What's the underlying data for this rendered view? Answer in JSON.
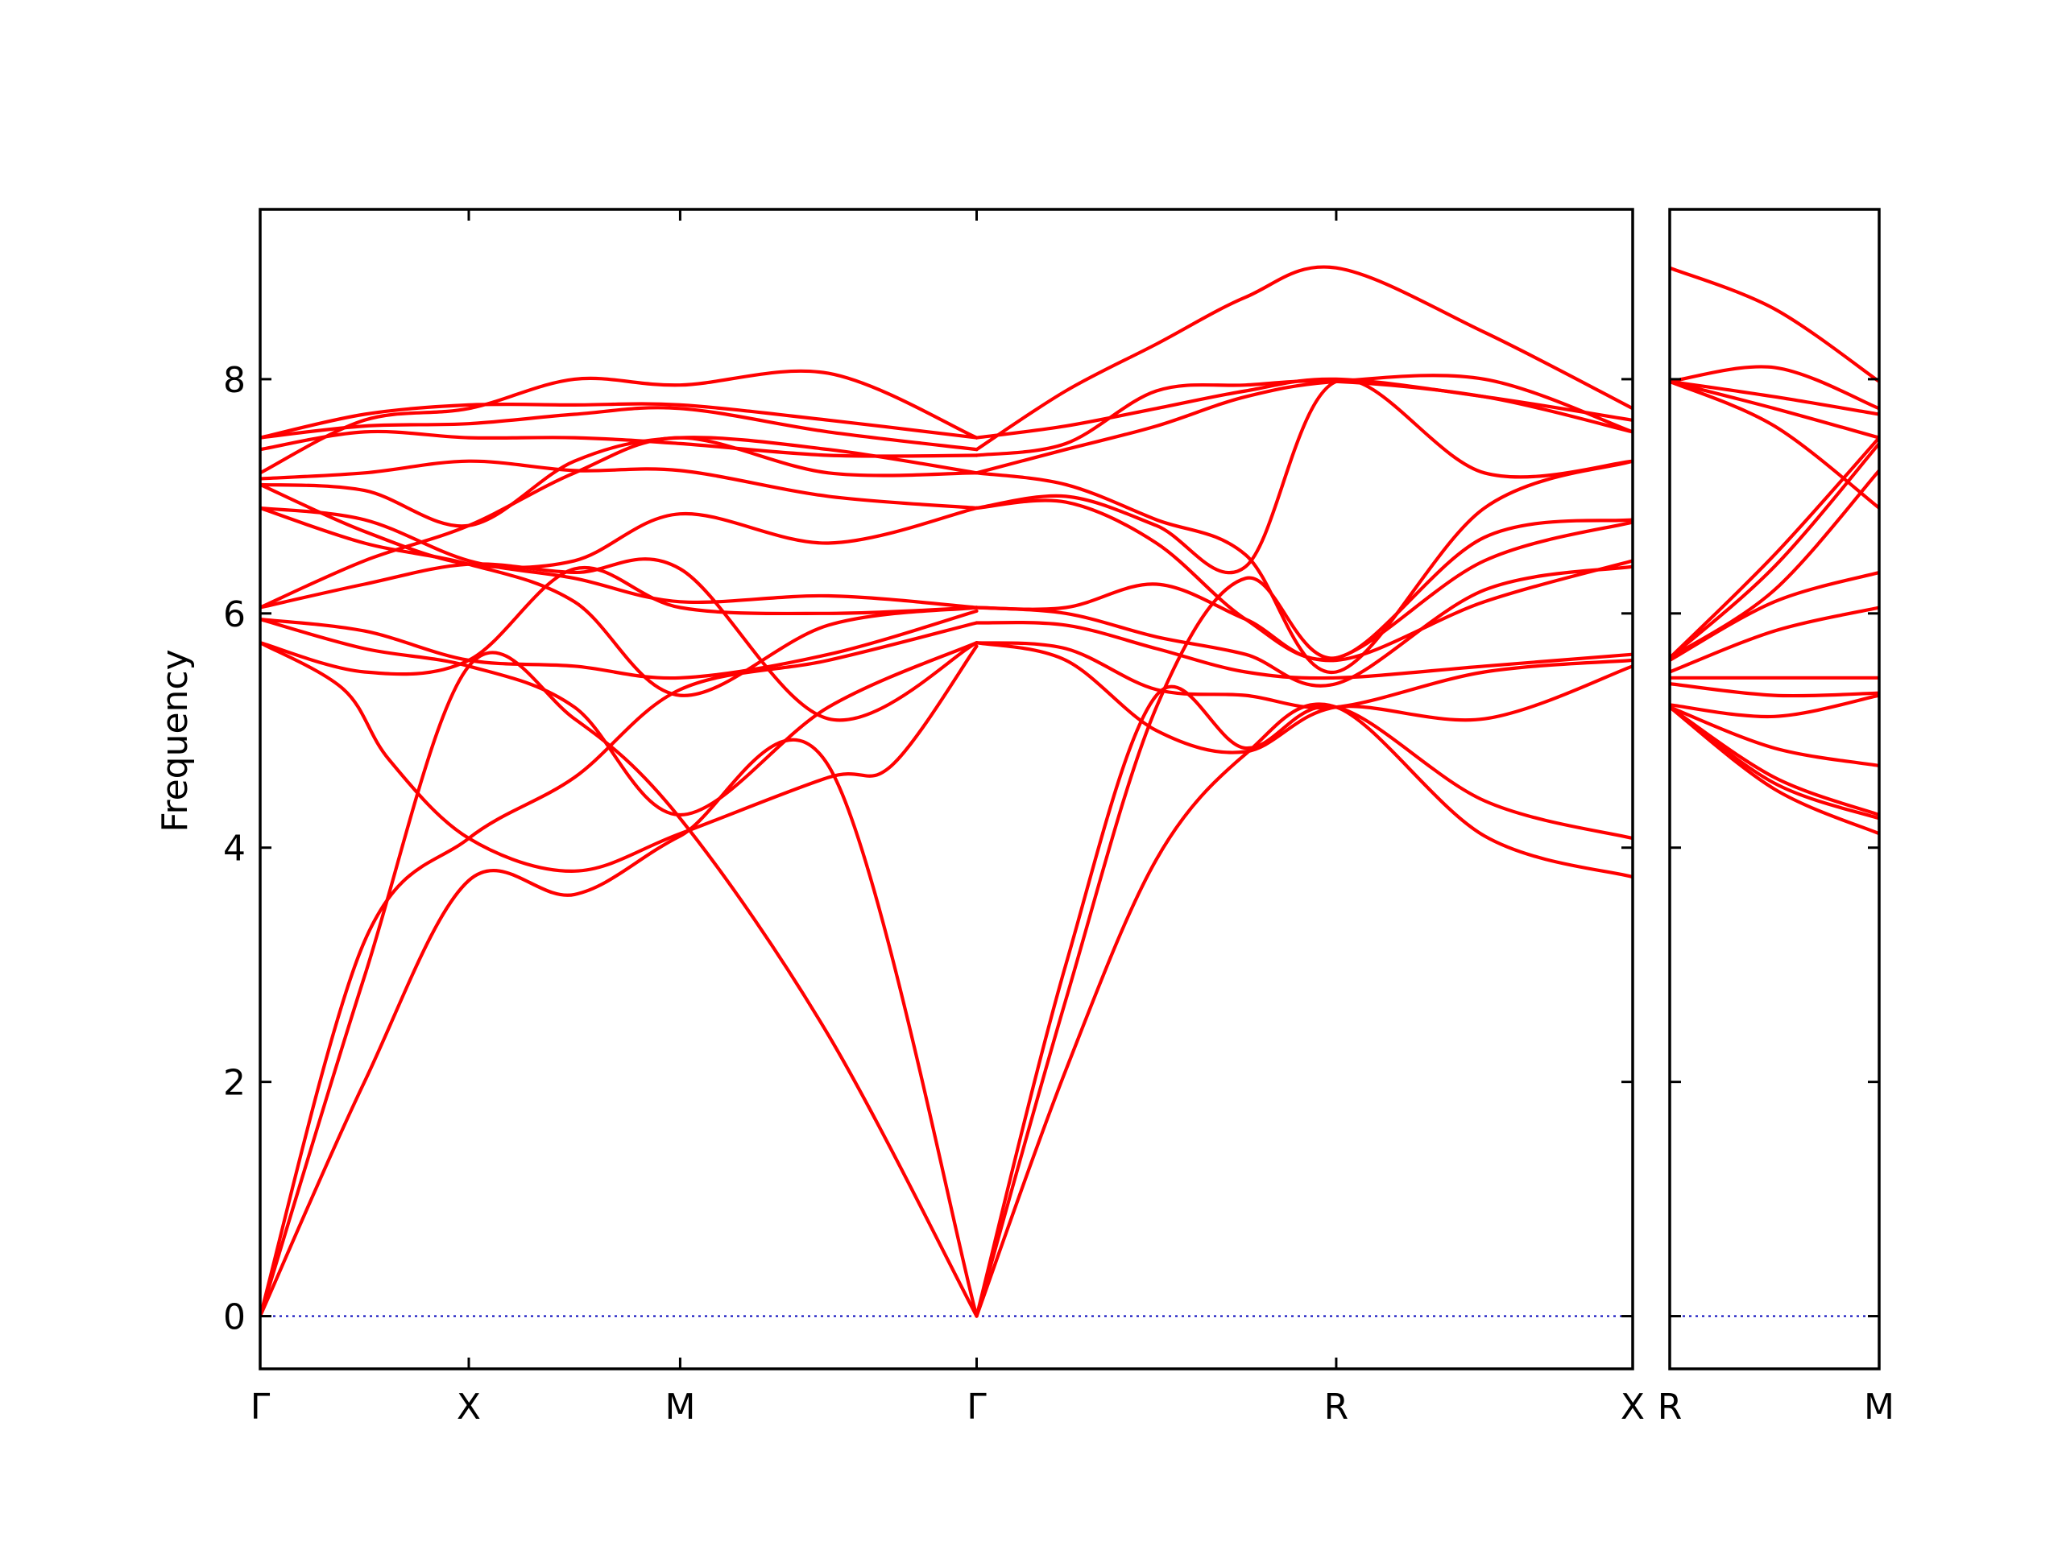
{
  "chart_data": {
    "type": "line",
    "title": "",
    "ylabel": "Frequency",
    "xlabel": "",
    "ylim": [
      -0.45,
      9.45
    ],
    "yticks": [
      0,
      2,
      4,
      6,
      8
    ],
    "grid": false,
    "colors": {
      "band": "#ff0000",
      "zero_line": "#0000bb",
      "frame": "#000000"
    },
    "panels": [
      {
        "x_range": [
          0,
          1.0
        ],
        "labels": [
          "Γ",
          "X",
          "M",
          "Γ",
          "R",
          "X"
        ],
        "label_positions": [
          0,
          0.152,
          0.306,
          0.522,
          0.784,
          1.0
        ],
        "series": [
          {
            "name": "",
            "x": [
              0,
              0.076,
              0.152,
              0.229,
              0.306,
              0.414,
              0.522
            ],
            "y": [
              0,
              2.0,
              3.72,
              3.6,
              4.1,
              4.7,
              0
            ]
          },
          {
            "name": "",
            "x": [
              0,
              0.076,
              0.152,
              0.229,
              0.306,
              0.414,
              0.522
            ],
            "y": [
              0,
              2.9,
              5.55,
              5.1,
              4.25,
              2.4,
              0
            ]
          },
          {
            "name": "",
            "x": [
              0,
              0.061,
              0.094,
              0.152,
              0.229,
              0.306,
              0.414,
              0.46,
              0.522
            ],
            "y": [
              5.75,
              5.35,
              4.75,
              4.08,
              3.8,
              4.12,
              4.6,
              4.7,
              5.72
            ]
          },
          {
            "name": "",
            "x": [
              0,
              0.076,
              0.152,
              0.229,
              0.306,
              0.414,
              0.522
            ],
            "y": [
              5.95,
              5.7,
              5.55,
              5.2,
              4.28,
              5.2,
              5.75
            ]
          },
          {
            "name": "",
            "x": [
              0,
              0.076,
              0.152,
              0.229,
              0.306,
              0.414,
              0.522
            ],
            "y": [
              0,
              3.2,
              4.08,
              4.6,
              5.35,
              5.6,
              5.92
            ]
          },
          {
            "name": "",
            "x": [
              0,
              0.076,
              0.152,
              0.229,
              0.306,
              0.414,
              0.522
            ],
            "y": [
              5.95,
              5.85,
              5.6,
              5.55,
              5.45,
              5.65,
              6.02
            ]
          },
          {
            "name": "",
            "x": [
              0,
              0.076,
              0.152,
              0.229,
              0.306,
              0.414,
              0.522
            ],
            "y": [
              6.05,
              6.25,
              6.42,
              6.35,
              6.38,
              5.1,
              5.75
            ]
          },
          {
            "name": "",
            "x": [
              0,
              0.076,
              0.152,
              0.229,
              0.306,
              0.414,
              0.522
            ],
            "y": [
              6.9,
              6.6,
              6.42,
              6.1,
              5.3,
              5.9,
              6.05
            ]
          },
          {
            "name": "",
            "x": [
              0,
              0.076,
              0.152,
              0.229,
              0.306,
              0.414,
              0.522
            ],
            "y": [
              5.75,
              5.5,
              5.6,
              6.38,
              6.05,
              6.0,
              6.05
            ]
          },
          {
            "name": "",
            "x": [
              0,
              0.076,
              0.152,
              0.229,
              0.306,
              0.414,
              0.522
            ],
            "y": [
              6.05,
              6.45,
              6.75,
              7.2,
              7.5,
              7.2,
              7.2
            ]
          },
          {
            "name": "",
            "x": [
              0,
              0.076,
              0.152,
              0.229,
              0.306,
              0.414,
              0.522
            ],
            "y": [
              7.1,
              6.7,
              6.42,
              6.45,
              6.85,
              6.6,
              6.9
            ]
          },
          {
            "name": "",
            "x": [
              0,
              0.076,
              0.152,
              0.229,
              0.306,
              0.414,
              0.522
            ],
            "y": [
              7.15,
              7.2,
              7.3,
              7.22,
              7.22,
              7.0,
              6.9
            ]
          },
          {
            "name": "",
            "x": [
              0,
              0.076,
              0.152,
              0.229,
              0.306,
              0.414,
              0.522
            ],
            "y": [
              7.4,
              7.55,
              7.5,
              7.5,
              7.45,
              7.35,
              7.35
            ]
          },
          {
            "name": "",
            "x": [
              0,
              0.076,
              0.152,
              0.229,
              0.306,
              0.414,
              0.522
            ],
            "y": [
              7.5,
              7.6,
              7.62,
              7.7,
              7.75,
              7.55,
              7.4
            ]
          },
          {
            "name": "",
            "x": [
              0,
              0.076,
              0.152,
              0.229,
              0.306,
              0.414,
              0.522
            ],
            "y": [
              7.2,
              7.65,
              7.75,
              8.0,
              7.95,
              8.05,
              7.5
            ]
          },
          {
            "name": "",
            "x": [
              0,
              0.076,
              0.152,
              0.229,
              0.306,
              0.414,
              0.522
            ],
            "y": [
              7.5,
              7.7,
              7.78,
              7.78,
              7.78,
              7.65,
              7.5
            ]
          },
          {
            "name": "",
            "x": [
              0,
              0.076,
              0.152,
              0.229,
              0.306,
              0.414,
              0.522
            ],
            "y": [
              7.1,
              7.05,
              6.75,
              7.3,
              7.5,
              7.4,
              7.2
            ]
          },
          {
            "name": "",
            "x": [
              0,
              0.076,
              0.152,
              0.229,
              0.306,
              0.414,
              0.522
            ],
            "y": [
              6.9,
              6.8,
              6.45,
              6.3,
              6.1,
              6.15,
              6.05
            ]
          },
          {
            "name": "",
            "x": [
              0.522,
              0.587,
              0.653,
              0.718,
              0.784,
              0.892,
              1.0
            ],
            "y": [
              0,
              2.1,
              3.9,
              4.8,
              5.2,
              4.1,
              3.75
            ]
          },
          {
            "name": "",
            "x": [
              0.522,
              0.587,
              0.653,
              0.718,
              0.784,
              0.892,
              1.0
            ],
            "y": [
              0,
              3.0,
              5.3,
              4.85,
              5.2,
              4.4,
              4.08
            ]
          },
          {
            "name": "",
            "x": [
              0.522,
              0.587,
              0.653,
              0.718,
              0.784,
              0.892,
              1.0
            ],
            "y": [
              5.75,
              5.6,
              5.0,
              4.82,
              5.2,
              5.1,
              5.55
            ]
          },
          {
            "name": "",
            "x": [
              0.522,
              0.587,
              0.653,
              0.718,
              0.784,
              0.892,
              1.0
            ],
            "y": [
              5.75,
              5.7,
              5.35,
              5.3,
              5.2,
              5.5,
              5.6
            ]
          },
          {
            "name": "",
            "x": [
              0.522,
              0.587,
              0.653,
              0.718,
              0.784,
              0.892,
              1.0
            ],
            "y": [
              5.92,
              5.9,
              5.7,
              5.5,
              5.45,
              5.55,
              5.65
            ]
          },
          {
            "name": "",
            "x": [
              0.522,
              0.587,
              0.653,
              0.718,
              0.784,
              0.892,
              1.0
            ],
            "y": [
              6.05,
              6.0,
              5.8,
              5.65,
              5.4,
              6.2,
              6.4
            ]
          },
          {
            "name": "",
            "x": [
              0.522,
              0.587,
              0.653,
              0.718,
              0.784,
              0.892,
              1.0
            ],
            "y": [
              6.05,
              6.05,
              6.25,
              5.95,
              5.62,
              6.45,
              6.78
            ]
          },
          {
            "name": "",
            "x": [
              0.522,
              0.587,
              0.653,
              0.718,
              0.784,
              0.892,
              1.0
            ],
            "y": [
              0,
              2.7,
              5.2,
              6.3,
              5.62,
              6.65,
              6.8
            ]
          },
          {
            "name": "",
            "x": [
              0.522,
              0.587,
              0.653,
              0.718,
              0.784,
              0.892,
              1.0
            ],
            "y": [
              6.9,
              6.95,
              6.6,
              5.95,
              5.6,
              6.1,
              6.45
            ]
          },
          {
            "name": "",
            "x": [
              0.522,
              0.587,
              0.653,
              0.718,
              0.784,
              0.892,
              1.0
            ],
            "y": [
              6.9,
              7.0,
              6.75,
              6.4,
              7.98,
              7.2,
              7.3
            ]
          },
          {
            "name": "",
            "x": [
              0.522,
              0.587,
              0.653,
              0.718,
              0.784,
              0.892,
              1.0
            ],
            "y": [
              7.2,
              7.1,
              6.8,
              6.5,
              5.5,
              6.9,
              7.3
            ]
          },
          {
            "name": "",
            "x": [
              0.522,
              0.587,
              0.653,
              0.718,
              0.784,
              0.892,
              1.0
            ],
            "y": [
              7.35,
              7.45,
              7.9,
              7.95,
              7.98,
              7.85,
              7.55
            ]
          },
          {
            "name": "",
            "x": [
              0.522,
              0.587,
              0.653,
              0.718,
              0.784,
              0.892,
              1.0
            ],
            "y": [
              7.4,
              7.9,
              8.3,
              8.7,
              8.95,
              8.4,
              7.75
            ]
          },
          {
            "name": "",
            "x": [
              0.522,
              0.587,
              0.653,
              0.718,
              0.784,
              0.892,
              1.0
            ],
            "y": [
              7.5,
              7.6,
              7.75,
              7.9,
              8.0,
              7.85,
              7.65
            ]
          },
          {
            "name": "",
            "x": [
              0.522,
              0.587,
              0.653,
              0.718,
              0.784,
              0.892,
              1.0
            ],
            "y": [
              7.2,
              7.4,
              7.6,
              7.85,
              7.98,
              8.0,
              7.55
            ]
          }
        ]
      },
      {
        "x_range": [
          0,
          1.0
        ],
        "labels": [
          "R",
          "M"
        ],
        "label_positions": [
          0,
          1.0
        ],
        "series": [
          {
            "name": "",
            "x": [
              0,
              0.5,
              1.0
            ],
            "y": [
              8.95,
              8.6,
              7.98
            ]
          },
          {
            "name": "",
            "x": [
              0,
              0.5,
              1.0
            ],
            "y": [
              7.98,
              8.1,
              7.75
            ]
          },
          {
            "name": "",
            "x": [
              0,
              0.5,
              1.0
            ],
            "y": [
              7.98,
              7.85,
              7.7
            ]
          },
          {
            "name": "",
            "x": [
              0,
              0.5,
              1.0
            ],
            "y": [
              7.98,
              7.75,
              7.5
            ]
          },
          {
            "name": "",
            "x": [
              0,
              0.5,
              1.0
            ],
            "y": [
              7.98,
              7.6,
              6.9
            ]
          },
          {
            "name": "",
            "x": [
              0,
              0.5,
              1.0
            ],
            "y": [
              5.62,
              6.5,
              7.5
            ]
          },
          {
            "name": "",
            "x": [
              0,
              0.5,
              1.0
            ],
            "y": [
              5.62,
              6.4,
              7.45
            ]
          },
          {
            "name": "",
            "x": [
              0,
              0.5,
              1.0
            ],
            "y": [
              5.62,
              6.2,
              7.22
            ]
          },
          {
            "name": "",
            "x": [
              0,
              0.5,
              1.0
            ],
            "y": [
              5.6,
              6.1,
              6.35
            ]
          },
          {
            "name": "",
            "x": [
              0,
              0.5,
              1.0
            ],
            "y": [
              5.5,
              5.85,
              6.05
            ]
          },
          {
            "name": "",
            "x": [
              0,
              0.5,
              1.0
            ],
            "y": [
              5.45,
              5.45,
              5.45
            ]
          },
          {
            "name": "",
            "x": [
              0,
              0.5,
              1.0
            ],
            "y": [
              5.4,
              5.3,
              5.32
            ]
          },
          {
            "name": "",
            "x": [
              0,
              0.5,
              1.0
            ],
            "y": [
              5.22,
              5.12,
              5.3
            ]
          },
          {
            "name": "",
            "x": [
              0,
              0.5,
              1.0
            ],
            "y": [
              5.2,
              4.85,
              4.7
            ]
          },
          {
            "name": "",
            "x": [
              0,
              0.5,
              1.0
            ],
            "y": [
              5.2,
              4.6,
              4.28
            ]
          },
          {
            "name": "",
            "x": [
              0,
              0.5,
              1.0
            ],
            "y": [
              5.2,
              4.55,
              4.25
            ]
          },
          {
            "name": "",
            "x": [
              0,
              0.5,
              1.0
            ],
            "y": [
              5.2,
              4.5,
              4.12
            ]
          }
        ]
      }
    ]
  }
}
